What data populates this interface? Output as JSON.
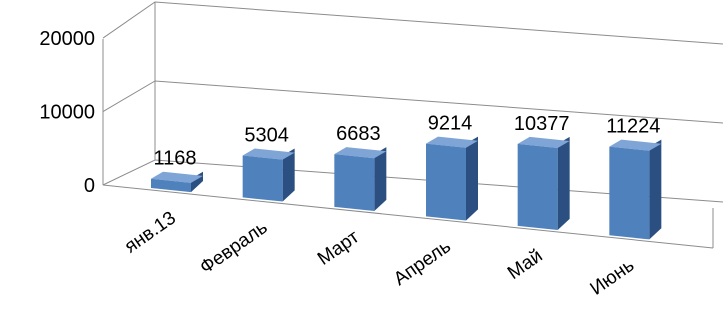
{
  "chart_data": {
    "type": "bar",
    "categories": [
      "янв.13",
      "Февраль",
      "Март",
      "Апрель",
      "Май",
      "Июнь"
    ],
    "values": [
      1168,
      5304,
      6683,
      9214,
      10377,
      11224
    ],
    "ylim": [
      0,
      20000
    ],
    "yticks": [
      0,
      10000,
      20000
    ],
    "grid": true,
    "style": "3d-column",
    "colors": {
      "bar_front": "#4f81bd",
      "bar_side": "#2b4f80",
      "bar_top": "#7ea5d6",
      "grid": "#8c8c8c"
    }
  }
}
